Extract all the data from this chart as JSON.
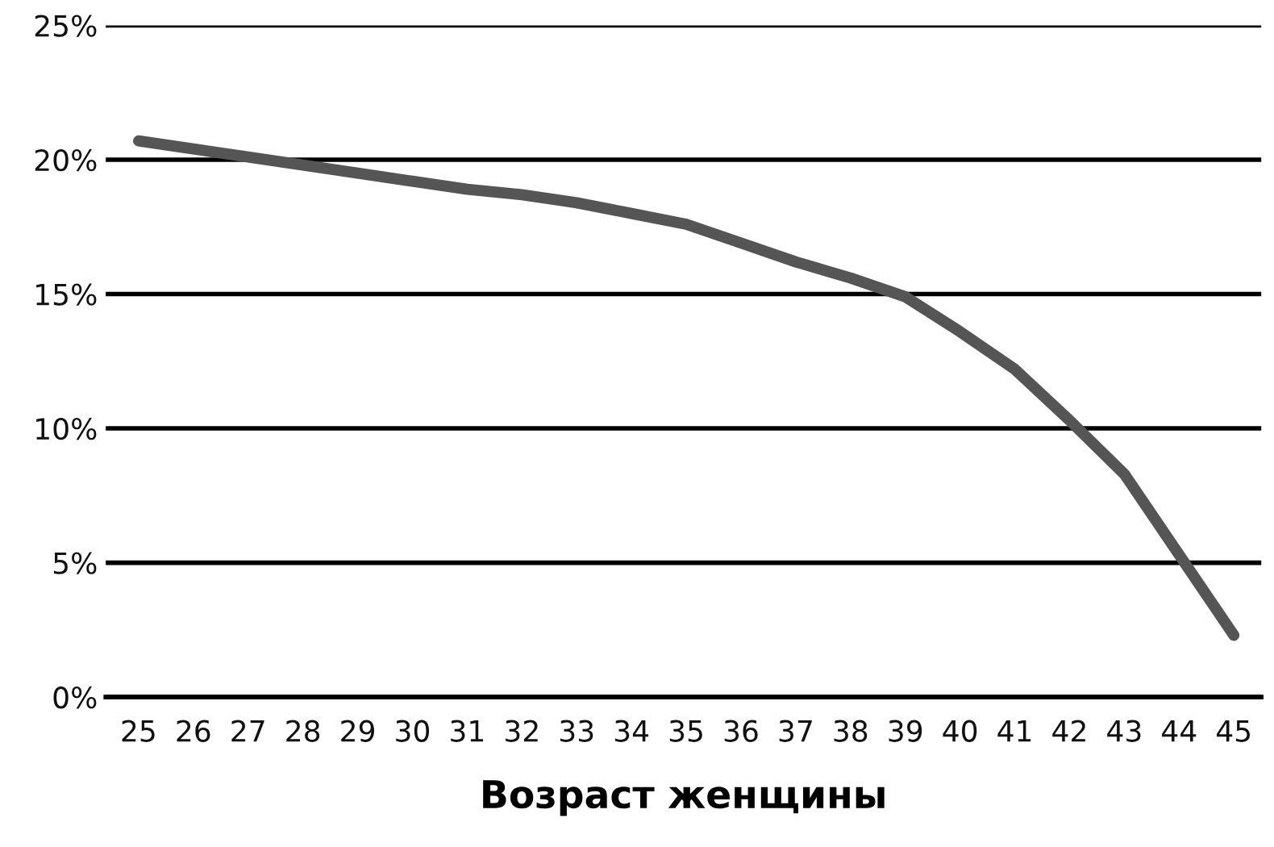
{
  "chart_data": {
    "type": "line",
    "xlabel": "Возраст женщины",
    "x": [
      25,
      26,
      27,
      28,
      29,
      30,
      31,
      32,
      33,
      34,
      35,
      36,
      37,
      38,
      39,
      40,
      41,
      42,
      43,
      44,
      45
    ],
    "series": [
      {
        "color": "#555555",
        "values": [
          20.7,
          20.4,
          20.1,
          19.8,
          19.5,
          19.2,
          18.9,
          18.7,
          18.4,
          18.0,
          17.6,
          16.9,
          16.2,
          15.6,
          14.9,
          13.6,
          12.2,
          10.3,
          8.3,
          5.3,
          2.3
        ]
      }
    ],
    "xlim": [
      24.4,
      45.5
    ],
    "xticks": [
      25,
      26,
      27,
      28,
      29,
      30,
      31,
      32,
      33,
      34,
      35,
      36,
      37,
      38,
      39,
      40,
      41,
      42,
      43,
      44,
      45
    ],
    "ylim": [
      0,
      25
    ],
    "yticks": [
      {
        "value": 0,
        "label": "0%"
      },
      {
        "value": 5,
        "label": "5%"
      },
      {
        "value": 10,
        "label": "10%"
      },
      {
        "value": 15,
        "label": "15%"
      },
      {
        "value": 20,
        "label": "20%"
      },
      {
        "value": 25,
        "label": "25%"
      }
    ],
    "grid": "y",
    "marker": "none",
    "line_style": "solid"
  }
}
